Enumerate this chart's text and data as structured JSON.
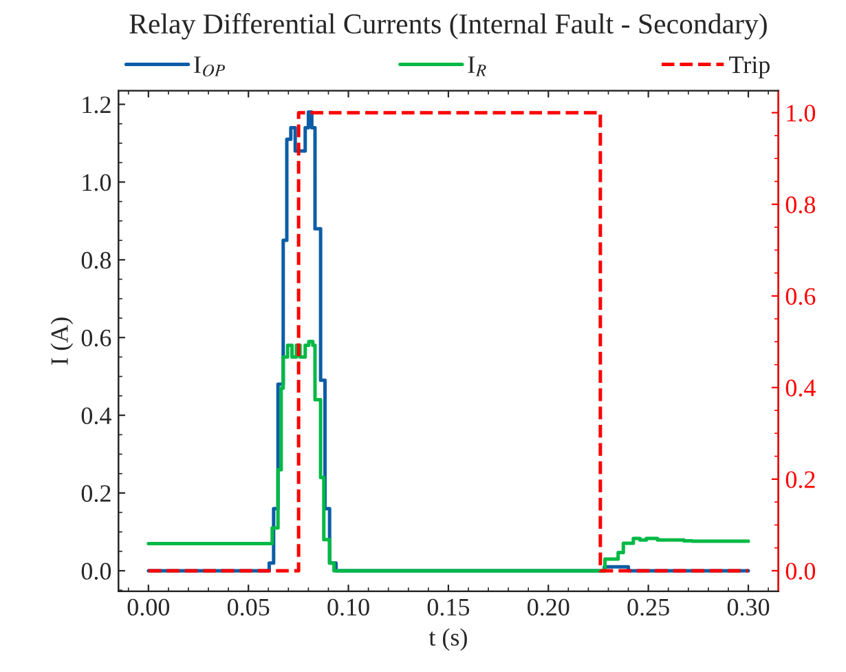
{
  "chart_data": {
    "type": "step",
    "title": "Relay Differential Currents (Internal Fault - Secondary)",
    "xlabel": "t (s)",
    "ylabel": "I (A)",
    "xlim": [
      -0.015,
      0.315
    ],
    "xticks": [
      {
        "value": 0,
        "label": "0.00"
      },
      {
        "value": 0.05,
        "label": "0.05"
      },
      {
        "value": 0.1,
        "label": "0.10"
      },
      {
        "value": 0.15,
        "label": "0.15"
      },
      {
        "value": 0.2,
        "label": "0.20"
      },
      {
        "value": 0.25,
        "label": "0.25"
      },
      {
        "value": 0.3,
        "label": "0.30"
      }
    ],
    "ylim": [
      -0.053,
      1.235
    ],
    "yticks": [
      {
        "value": 0,
        "label": "0.0"
      },
      {
        "value": 0.2,
        "label": "0.2"
      },
      {
        "value": 0.4,
        "label": "0.4"
      },
      {
        "value": 0.6,
        "label": "0.6"
      },
      {
        "value": 0.8,
        "label": "0.8"
      },
      {
        "value": 1.0,
        "label": "1.0"
      },
      {
        "value": 1.2,
        "label": "1.2"
      }
    ],
    "y2lim": [
      -0.045,
      1.048
    ],
    "y2ticks": [
      {
        "value": 0,
        "label": "0.0"
      },
      {
        "value": 0.2,
        "label": "0.2"
      },
      {
        "value": 0.4,
        "label": "0.4"
      },
      {
        "value": 0.6,
        "label": "0.6"
      },
      {
        "value": 0.8,
        "label": "0.8"
      },
      {
        "value": 1.0,
        "label": "1.0"
      }
    ],
    "grid": false,
    "legend": "top",
    "series": [
      {
        "name": "I$_{OP}$",
        "color": "#0c5da5",
        "line_style": "solid",
        "x": [
          0,
          0.0604,
          0.0626,
          0.0648,
          0.0674,
          0.0692,
          0.0712,
          0.0734,
          0.0784,
          0.08,
          0.0817,
          0.0833,
          0.0861,
          0.0883,
          0.0906,
          0.0938,
          0.228,
          0.24,
          0.3
        ],
        "values": [
          0,
          0.02,
          0.16,
          0.48,
          0.85,
          1.11,
          1.14,
          1.08,
          1.14,
          1.18,
          1.14,
          0.88,
          0.49,
          0.16,
          0.02,
          0,
          0.01,
          0,
          0
        ]
      },
      {
        "name": "I$_{R}$",
        "color": "#00b945",
        "line_style": "solid",
        "x": [
          0,
          0.0619,
          0.0648,
          0.0664,
          0.0674,
          0.0696,
          0.0718,
          0.074,
          0.0758,
          0.0784,
          0.0802,
          0.0822,
          0.0833,
          0.0861,
          0.0877,
          0.0906,
          0.0928,
          0.2283,
          0.2316,
          0.2349,
          0.2375,
          0.2425,
          0.2458,
          0.249,
          0.2546,
          0.2678,
          0.272,
          0.3
        ],
        "values": [
          0.07,
          0.11,
          0.26,
          0.47,
          0.55,
          0.58,
          0.55,
          0.58,
          0.55,
          0.58,
          0.59,
          0.58,
          0.44,
          0.24,
          0.08,
          0.02,
          0,
          0.03,
          0.03,
          0.047,
          0.071,
          0.083,
          0.079,
          0.083,
          0.079,
          0.077,
          0.076,
          0.076
        ]
      },
      {
        "name": "Trip",
        "color": "#ff0000",
        "line_style": "dashed",
        "axis": "y2",
        "x": [
          0,
          0.0751,
          0.226,
          0.3
        ],
        "values": [
          0,
          1,
          0,
          0
        ]
      }
    ]
  }
}
